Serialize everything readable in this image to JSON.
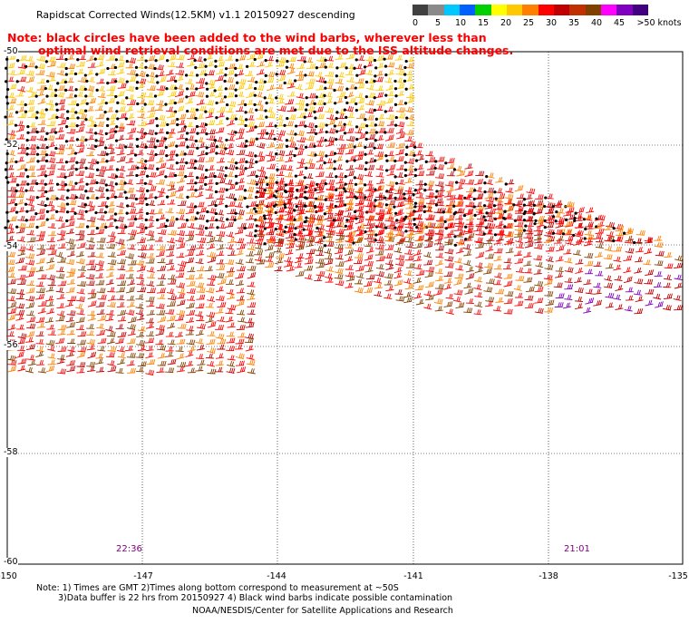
{
  "header": {
    "title": "Rapidscat Corrected Winds(12.5KM) v1.1 20150927 descending"
  },
  "note": {
    "line1": "Note: black circles have been added to the wind barbs, wherever less than",
    "line2": "optimal wind retrieval conditions are met due to the ISS altitude changes."
  },
  "legend": {
    "labels": [
      "0",
      "5",
      "10",
      "15",
      "20",
      "25",
      "30",
      "35",
      "40",
      "45",
      ">50 knots"
    ],
    "colors": [
      "#404040",
      "#8a8a8a",
      "#00c8ff",
      "#0060ff",
      "#00d000",
      "#ffff00",
      "#ffc800",
      "#ff8000",
      "#ff0000",
      "#c00000",
      "#c03000",
      "#804000",
      "#ff00ff",
      "#8000c0",
      "#400080"
    ]
  },
  "axes": {
    "lat_labels": [
      "-50",
      "-52",
      "-54",
      "-56",
      "-58",
      "-60"
    ],
    "lon_labels": [
      "-150",
      "-147",
      "-144",
      "-141",
      "-138",
      "-135"
    ]
  },
  "times": {
    "left": "22:36",
    "right": "21:01"
  },
  "footer": {
    "line1": "Note: 1) Times are GMT 2)Times along bottom correspond to measurement at ~50S",
    "line2": "3)Data buffer is 22 hrs from 20150927 4) Black wind barbs indicate possible contamination",
    "line3": "NOAA/NESDIS/Center for Satellite Applications and Research"
  },
  "colors": {
    "barb_yellow": "#ffc800",
    "barb_orange": "#ff8000",
    "barb_red": "#ff0000",
    "barb_darkred": "#c00000",
    "barb_brown": "#804000",
    "barb_purple": "#8000c0",
    "contamination_marker": "#000000"
  }
}
